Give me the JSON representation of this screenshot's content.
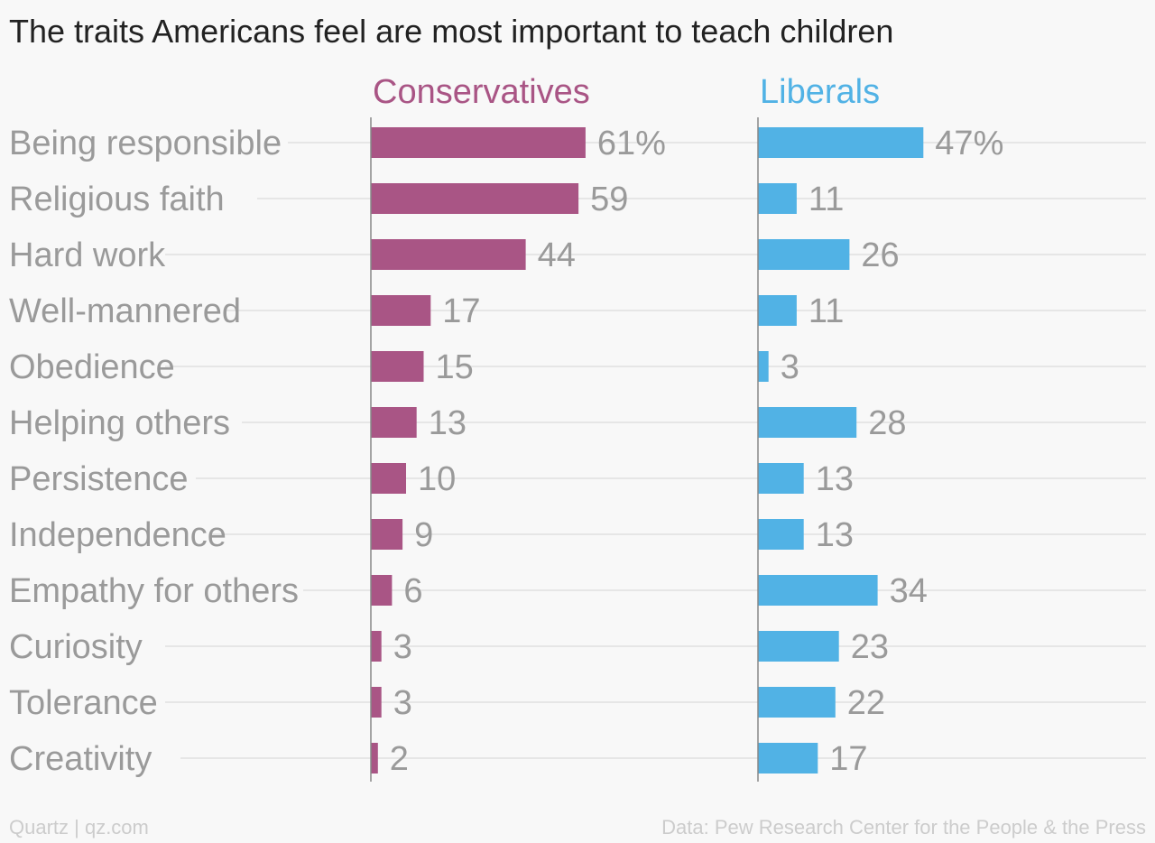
{
  "chart_data": {
    "type": "bar",
    "title": "The traits Americans feel are most important to teach children",
    "categories": [
      "Being responsible",
      "Religious faith",
      "Hard work",
      "Well-mannered",
      "Obedience",
      "Helping others",
      "Persistence",
      "Independence",
      "Empathy for others",
      "Curiosity",
      "Tolerance",
      "Creativity"
    ],
    "series": [
      {
        "name": "Conservatives",
        "color": "#a95585",
        "values": [
          61,
          59,
          44,
          17,
          15,
          13,
          10,
          9,
          6,
          3,
          3,
          2
        ],
        "labels": [
          "61%",
          "59",
          "44",
          "17",
          "15",
          "13",
          "10",
          "9",
          "6",
          "3",
          "3",
          "2"
        ]
      },
      {
        "name": "Liberals",
        "color": "#51b2e5",
        "values": [
          47,
          11,
          26,
          11,
          3,
          28,
          13,
          13,
          34,
          23,
          22,
          17
        ],
        "labels": [
          "47%",
          "11",
          "26",
          "11",
          "3",
          "28",
          "13",
          "13",
          "34",
          "23",
          "22",
          "17"
        ]
      }
    ],
    "unit": "%",
    "grid": true,
    "legend": "top"
  },
  "footer": {
    "left": "Quartz | qz.com",
    "right": "Data: Pew Research Center for the People & the Press"
  }
}
